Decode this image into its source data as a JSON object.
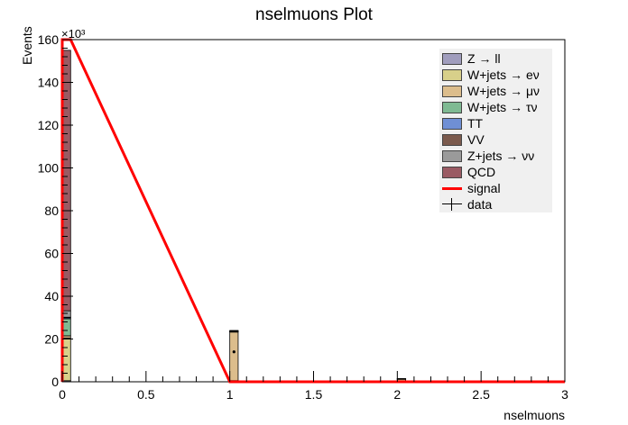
{
  "chart_data": {
    "type": "bar",
    "title": "nselmuons Plot",
    "xlabel": "nselmuons",
    "ylabel": "Events",
    "y_exponent_label": "×10³",
    "xlim": [
      0,
      3
    ],
    "ylim": [
      0,
      160000
    ],
    "x_ticks": [
      "0",
      "0.5",
      "1",
      "1.5",
      "2",
      "2.5",
      "3"
    ],
    "y_ticks": [
      "0",
      "20",
      "40",
      "60",
      "80",
      "100",
      "120",
      "140",
      "160"
    ],
    "y_tick_values": [
      0,
      20000,
      40000,
      60000,
      80000,
      100000,
      120000,
      140000,
      160000
    ],
    "bin_width": 0.05,
    "stack_bins": [
      0,
      1,
      2
    ],
    "stack_series": [
      {
        "name": "Z → ll",
        "color": "#a09dbd",
        "values": [
          500,
          50,
          10
        ]
      },
      {
        "name": "W+jets → eν",
        "color": "#d8d08a",
        "values": [
          20000,
          500,
          100
        ]
      },
      {
        "name": "W+jets → μν",
        "color": "#dcbd8c",
        "values": [
          1000,
          22700,
          1200
        ]
      },
      {
        "name": "W+jets → τν",
        "color": "#7fba93",
        "values": [
          8000,
          300,
          50
        ]
      },
      {
        "name": "TT",
        "color": "#6f8fd5",
        "values": [
          500,
          100,
          50
        ]
      },
      {
        "name": "VV",
        "color": "#7b5a4d",
        "values": [
          200,
          50,
          10
        ]
      },
      {
        "name": "Z+jets → νν",
        "color": "#9a9a9a",
        "values": [
          3000,
          50,
          10
        ]
      },
      {
        "name": "QCD",
        "color": "#9a5a63",
        "values": [
          121800,
          250,
          70
        ]
      }
    ],
    "signal": {
      "name": "signal",
      "color": "#ff0000",
      "bins": [
        0,
        1,
        2
      ],
      "values": [
        160000,
        0,
        0
      ]
    },
    "data": {
      "name": "data",
      "bins": [
        0,
        1,
        2
      ],
      "values": [
        0,
        14000,
        0
      ]
    },
    "legend_position": "top-right"
  }
}
